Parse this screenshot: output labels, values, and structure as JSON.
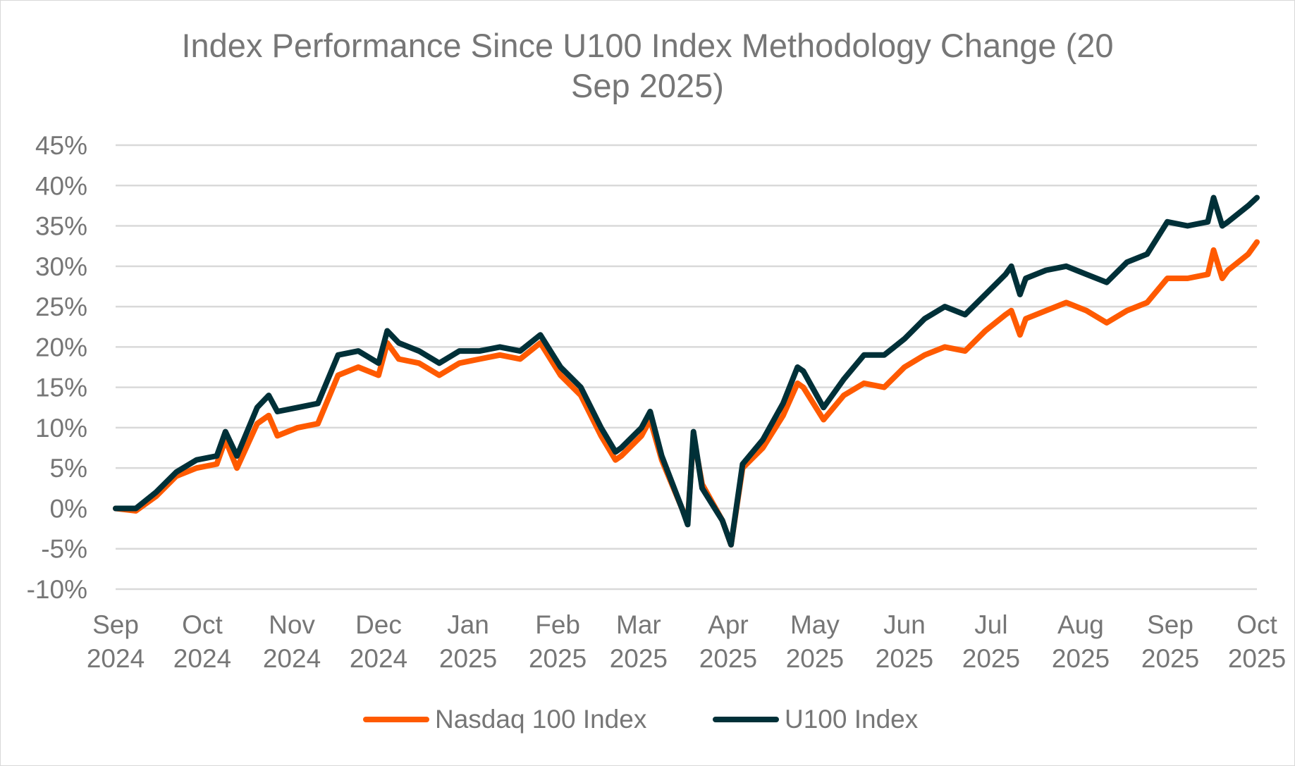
{
  "chart_data": {
    "type": "line",
    "title": "Index Performance Since U100 Index Methodology Change (20 Sep 2025)",
    "title_lines": [
      "Index Performance Since U100 Index Methodology Change (20",
      "Sep 2025)"
    ],
    "xlabel": "",
    "ylabel": "",
    "x_range": [
      "2024-09-01",
      "2025-10-01"
    ],
    "x_ticks": [
      {
        "date": "2024-09-01",
        "label": [
          "Sep",
          "2024"
        ]
      },
      {
        "date": "2024-10-01",
        "label": [
          "Oct",
          "2024"
        ]
      },
      {
        "date": "2024-11-01",
        "label": [
          "Nov",
          "2024"
        ]
      },
      {
        "date": "2024-12-01",
        "label": [
          "Dec",
          "2024"
        ]
      },
      {
        "date": "2025-01-01",
        "label": [
          "Jan",
          "2025"
        ]
      },
      {
        "date": "2025-02-01",
        "label": [
          "Feb",
          "2025"
        ]
      },
      {
        "date": "2025-03-01",
        "label": [
          "Mar",
          "2025"
        ]
      },
      {
        "date": "2025-04-01",
        "label": [
          "Apr",
          "2025"
        ]
      },
      {
        "date": "2025-05-01",
        "label": [
          "May",
          "2025"
        ]
      },
      {
        "date": "2025-06-01",
        "label": [
          "Jun",
          "2025"
        ]
      },
      {
        "date": "2025-07-01",
        "label": [
          "Jul",
          "2025"
        ]
      },
      {
        "date": "2025-08-01",
        "label": [
          "Aug",
          "2025"
        ]
      },
      {
        "date": "2025-09-01",
        "label": [
          "Sep",
          "2025"
        ]
      },
      {
        "date": "2025-10-01",
        "label": [
          "Oct",
          "2025"
        ]
      }
    ],
    "ylim": [
      -10,
      45
    ],
    "y_ticks": [
      -10,
      -5,
      0,
      5,
      10,
      15,
      20,
      25,
      30,
      35,
      40,
      45
    ],
    "y_tick_labels": [
      "-10%",
      "-5%",
      "0%",
      "5%",
      "10%",
      "15%",
      "20%",
      "25%",
      "30%",
      "35%",
      "40%",
      "45%"
    ],
    "grid": true,
    "legend_position": "bottom",
    "x": [
      "2024-09-01",
      "2024-09-08",
      "2024-09-15",
      "2024-09-22",
      "2024-09-29",
      "2024-10-06",
      "2024-10-09",
      "2024-10-13",
      "2024-10-20",
      "2024-10-24",
      "2024-10-27",
      "2024-11-03",
      "2024-11-10",
      "2024-11-17",
      "2024-11-24",
      "2024-12-01",
      "2024-12-04",
      "2024-12-08",
      "2024-12-15",
      "2024-12-22",
      "2024-12-29",
      "2025-01-05",
      "2025-01-12",
      "2025-01-19",
      "2025-01-26",
      "2025-02-02",
      "2025-02-09",
      "2025-02-16",
      "2025-02-21",
      "2025-02-23",
      "2025-03-02",
      "2025-03-05",
      "2025-03-09",
      "2025-03-16",
      "2025-03-18",
      "2025-03-20",
      "2025-03-23",
      "2025-03-30",
      "2025-04-02",
      "2025-04-06",
      "2025-04-13",
      "2025-04-20",
      "2025-04-25",
      "2025-04-27",
      "2025-05-04",
      "2025-05-11",
      "2025-05-18",
      "2025-05-25",
      "2025-06-01",
      "2025-06-08",
      "2025-06-15",
      "2025-06-22",
      "2025-06-29",
      "2025-07-06",
      "2025-07-08",
      "2025-07-11",
      "2025-07-13",
      "2025-07-20",
      "2025-07-27",
      "2025-08-03",
      "2025-08-10",
      "2025-08-17",
      "2025-08-24",
      "2025-08-31",
      "2025-09-07",
      "2025-09-14",
      "2025-09-16",
      "2025-09-19",
      "2025-09-21",
      "2025-09-28",
      "2025-10-01"
    ],
    "series": [
      {
        "name": "Nasdaq 100 Index",
        "color": "#FF5A00",
        "values": [
          0,
          -0.3,
          1.5,
          4,
          5,
          5.5,
          8.5,
          5,
          10.5,
          11.5,
          9,
          10,
          10.5,
          16.5,
          17.5,
          16.5,
          20.5,
          18.5,
          18,
          16.5,
          18,
          18.5,
          19,
          18.5,
          20.5,
          16.5,
          14,
          9,
          6,
          6.5,
          9,
          11,
          6,
          0,
          -1.5,
          9,
          3,
          -1.5,
          -4.5,
          5,
          7.5,
          11.5,
          15.5,
          15,
          11,
          14,
          15.5,
          15,
          17.5,
          19,
          20,
          19.5,
          22,
          24,
          24.5,
          21.5,
          23.5,
          24.5,
          25.5,
          24.5,
          23,
          24.5,
          25.5,
          28.5,
          28.5,
          29,
          32,
          28.5,
          29.5,
          31.5,
          33
        ]
      },
      {
        "name": "U100 Index",
        "color": "#003038",
        "values": [
          0,
          0,
          2,
          4.5,
          6,
          6.5,
          9.5,
          6.5,
          12.5,
          14,
          12,
          12.5,
          13,
          19,
          19.5,
          18,
          22,
          20.5,
          19.5,
          18,
          19.5,
          19.5,
          20,
          19.5,
          21.5,
          17.5,
          15,
          10,
          7,
          7.5,
          10,
          12,
          6.5,
          0,
          -2,
          9.5,
          2.5,
          -1.5,
          -4.5,
          5.5,
          8.5,
          13,
          17.5,
          17,
          12.5,
          16,
          19,
          19,
          21,
          23.5,
          25,
          24,
          26.5,
          29,
          30,
          26.5,
          28.5,
          29.5,
          30,
          29,
          28,
          30.5,
          31.5,
          35.5,
          35,
          35.5,
          38.5,
          35,
          35.5,
          37.5,
          38.5
        ]
      }
    ]
  },
  "colors": {
    "text": "#767676",
    "grid": "#D9D9D9"
  }
}
